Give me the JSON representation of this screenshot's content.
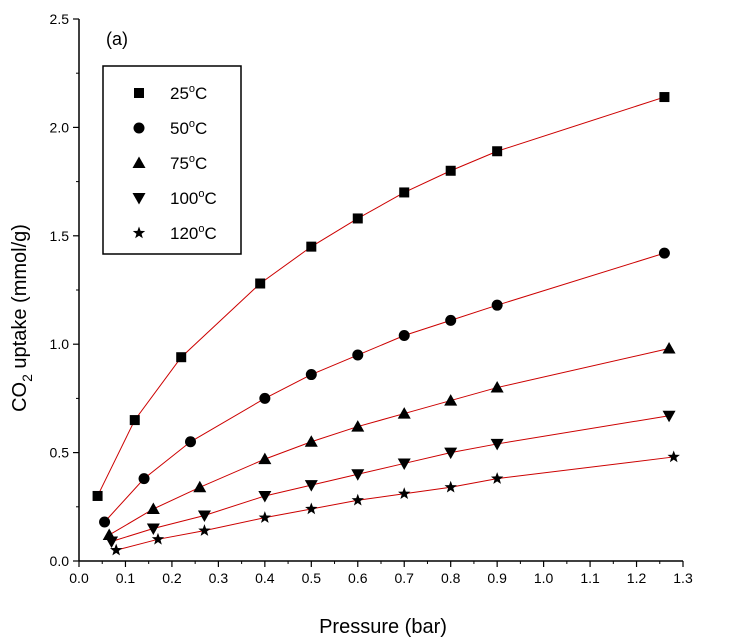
{
  "chart_data": {
    "type": "scatter",
    "panel_label": "(a)",
    "xlabel": "Pressure (bar)",
    "ylabel_parts": {
      "pre": "CO",
      "sub": "2",
      "post": " uptake (mmol/g)"
    },
    "xlim": [
      0.0,
      1.3
    ],
    "ylim": [
      0.0,
      2.5
    ],
    "x_ticks": [
      "0.0",
      "0.1",
      "0.2",
      "0.3",
      "0.4",
      "0.5",
      "0.6",
      "0.7",
      "0.8",
      "0.9",
      "1.0",
      "1.1",
      "1.2",
      "1.3"
    ],
    "y_ticks": [
      "0.0",
      "0.5",
      "1.0",
      "1.5",
      "2.0",
      "2.5"
    ],
    "grid": false,
    "legend_position": "top-left",
    "fit_line_color": "#cc0000",
    "marker_color": "#000000",
    "series": [
      {
        "name": "25°C",
        "name_num": "25",
        "name_unit": "C",
        "name_sup": "o",
        "marker": "square",
        "x": [
          0.04,
          0.12,
          0.22,
          0.39,
          0.5,
          0.6,
          0.7,
          0.8,
          0.9,
          1.26
        ],
        "y": [
          0.3,
          0.65,
          0.94,
          1.28,
          1.45,
          1.58,
          1.7,
          1.8,
          1.89,
          2.14
        ]
      },
      {
        "name": "50°C",
        "name_num": "50",
        "name_unit": "C",
        "name_sup": "o",
        "marker": "circle",
        "x": [
          0.055,
          0.14,
          0.24,
          0.4,
          0.5,
          0.6,
          0.7,
          0.8,
          0.9,
          1.26
        ],
        "y": [
          0.18,
          0.38,
          0.55,
          0.75,
          0.86,
          0.95,
          1.04,
          1.11,
          1.18,
          1.42
        ]
      },
      {
        "name": "75°C",
        "name_num": "75",
        "name_unit": "C",
        "name_sup": "o",
        "marker": "triangle-up",
        "x": [
          0.065,
          0.16,
          0.26,
          0.4,
          0.5,
          0.6,
          0.7,
          0.8,
          0.9,
          1.27
        ],
        "y": [
          0.12,
          0.24,
          0.34,
          0.47,
          0.55,
          0.62,
          0.68,
          0.74,
          0.8,
          0.98
        ]
      },
      {
        "name": "100°C",
        "name_num": "100",
        "name_unit": "C",
        "name_sup": "o",
        "marker": "triangle-down",
        "x": [
          0.07,
          0.16,
          0.27,
          0.4,
          0.5,
          0.6,
          0.7,
          0.8,
          0.9,
          1.27
        ],
        "y": [
          0.09,
          0.15,
          0.21,
          0.3,
          0.35,
          0.4,
          0.45,
          0.5,
          0.54,
          0.67
        ]
      },
      {
        "name": "120°C",
        "name_num": "120",
        "name_unit": "C",
        "name_sup": "o",
        "marker": "star",
        "x": [
          0.08,
          0.17,
          0.27,
          0.4,
          0.5,
          0.6,
          0.7,
          0.8,
          0.9,
          1.28
        ],
        "y": [
          0.05,
          0.1,
          0.14,
          0.2,
          0.24,
          0.28,
          0.31,
          0.34,
          0.38,
          0.48
        ]
      }
    ]
  }
}
